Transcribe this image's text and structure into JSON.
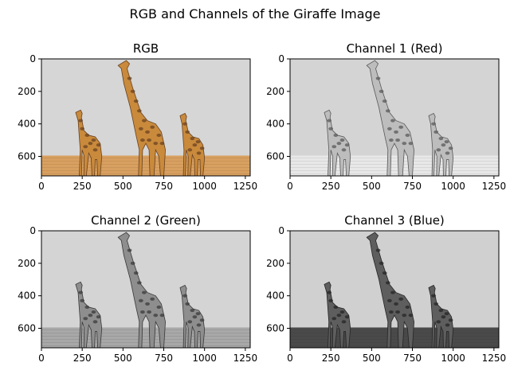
{
  "figure": {
    "suptitle": "RGB and Channels of the Giraffe Image"
  },
  "panels": [
    {
      "title": "RGB",
      "mode": "rgb"
    },
    {
      "title": "Channel 1 (Red)",
      "mode": "red"
    },
    {
      "title": "Channel 2 (Green)",
      "mode": "green"
    },
    {
      "title": "Channel 3 (Blue)",
      "mode": "blue"
    }
  ],
  "axes": {
    "x_ticks": [
      0,
      250,
      500,
      750,
      1000,
      1250
    ],
    "y_ticks": [
      0,
      200,
      400,
      600
    ],
    "x_range": [
      0,
      1280
    ],
    "y_range": [
      0,
      720
    ]
  },
  "colors": {
    "rgb_sky": "#d6d6d6",
    "rgb_ground": "#d8a060",
    "rgb_giraffe": "#c98a3c",
    "rgb_patch": "#6a4220",
    "red_sky": "#d4d4d4",
    "red_ground": "#e8e8e8",
    "red_giraffe": "#bdbdbd",
    "red_patch": "#5a5a5a",
    "green_sky": "#d4d4d4",
    "green_ground": "#a8a8a8",
    "green_giraffe": "#8e8e8e",
    "green_patch": "#3a3a3a",
    "blue_sky": "#d0d0d0",
    "blue_ground": "#4a4a4a",
    "blue_giraffe": "#5e5e5e",
    "blue_patch": "#262626"
  }
}
